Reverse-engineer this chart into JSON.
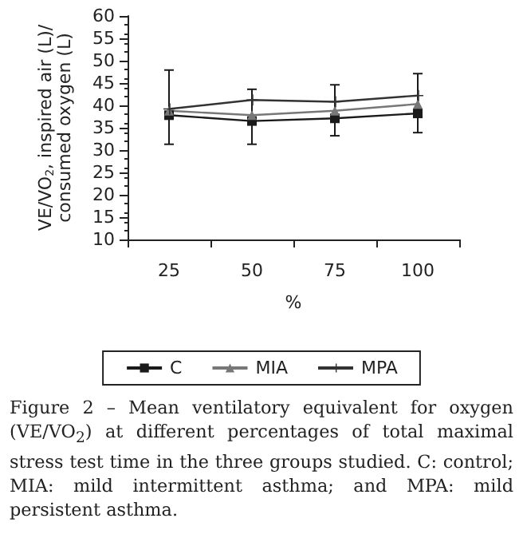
{
  "chart_data": {
    "type": "line",
    "ylabel": "VE/VO$_{2}$, inspired air (L)/ consumed oxygen (L)",
    "xlabel": "%",
    "categories": [
      "25",
      "50",
      "75",
      "100"
    ],
    "series": [
      {
        "name": "C",
        "color": "#1a1a1a",
        "marker": "square",
        "values": [
          37.8,
          36.5,
          37.1,
          38.2
        ],
        "errors": [
          [
            31.3,
            47.9
          ],
          [
            31.3,
            43.6
          ],
          [
            33.2,
            44.6
          ],
          [
            33.9,
            47.1
          ]
        ]
      },
      {
        "name": "MIA",
        "color": "#777777",
        "marker": "triangle",
        "values": [
          38.8,
          37.8,
          38.8,
          40.3
        ]
      },
      {
        "name": "MPA",
        "color": "#333333",
        "marker": "cross",
        "values": [
          39.2,
          41.2,
          40.8,
          42.2
        ]
      }
    ],
    "ylim": [
      10,
      60
    ],
    "yticks": [
      10,
      15,
      20,
      25,
      30,
      35,
      40,
      45,
      50,
      55,
      60
    ],
    "grid": false,
    "legend": "bottom",
    "annotations": [
      "Figure 2 – Mean ventilatory equivalent for oxygen (VE/VO$_{2}$) at different percentages of total maximal stress test time in the three groups studied. C: control; MIA: mild intermittent asthma; and MPA: mild persistent asthma."
    ]
  }
}
